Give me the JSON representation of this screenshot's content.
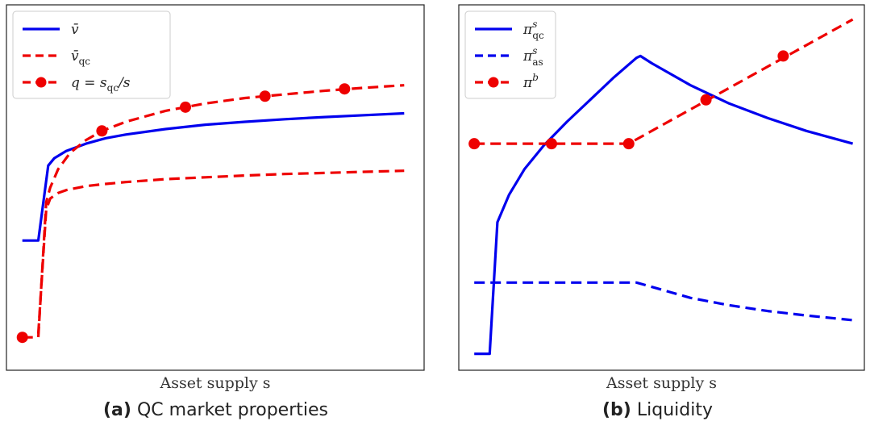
{
  "chart_data": [
    {
      "type": "line",
      "caption_tag": "(a)",
      "caption_text": "QC market properties",
      "xlabel": "Asset supply s",
      "ylabel": "",
      "xlim": [
        0,
        10.5
      ],
      "ylim": [
        0,
        10
      ],
      "grid": false,
      "ticks": false,
      "legend": "top-left",
      "series": [
        {
          "name": "v̄",
          "color": "#0000ee",
          "style": "solid",
          "markers": false,
          "x": [
            0.4,
            0.8,
            1.05,
            1.2,
            1.5,
            2,
            2.5,
            3,
            4,
            5,
            6,
            7,
            8,
            9,
            10
          ],
          "y": [
            3.55,
            3.55,
            5.6,
            5.8,
            6.0,
            6.2,
            6.35,
            6.45,
            6.6,
            6.72,
            6.8,
            6.87,
            6.93,
            6.98,
            7.03
          ]
        },
        {
          "name": "v̄qc",
          "color": "#ee0000",
          "style": "dashed",
          "markers": false,
          "x": [
            0.8,
            1.0,
            1.1,
            1.3,
            1.5,
            2,
            2.5,
            3,
            4,
            5,
            6,
            7,
            8,
            9,
            10
          ],
          "y": [
            1.0,
            4.4,
            4.7,
            4.85,
            4.93,
            5.04,
            5.1,
            5.15,
            5.23,
            5.28,
            5.33,
            5.37,
            5.4,
            5.43,
            5.46
          ]
        },
        {
          "name": "q = sqc/s",
          "color": "#ee0000",
          "style": "dashed",
          "markers": true,
          "x": [
            0.4,
            0.8,
            1.0,
            1.1,
            1.3,
            1.6,
            2,
            2.4,
            3,
            4,
            5,
            6,
            7,
            8,
            9,
            10
          ],
          "y": [
            0.9,
            0.9,
            4.6,
            5.0,
            5.5,
            5.95,
            6.3,
            6.55,
            6.8,
            7.1,
            7.3,
            7.45,
            7.55,
            7.65,
            7.73,
            7.8
          ],
          "marker_x": [
            0.4,
            2.4,
            4.5,
            6.5,
            8.5
          ],
          "marker_y": [
            0.9,
            6.55,
            7.2,
            7.5,
            7.7
          ]
        }
      ],
      "legend_entries": [
        {
          "pre": "v̄",
          "sub": ""
        },
        {
          "pre": "v̄",
          "sub": "qc"
        },
        {
          "pre": "q = s",
          "sub": "qc",
          "post": "/s"
        }
      ]
    },
    {
      "type": "line",
      "caption_tag": "(b)",
      "caption_text": "Liquidity",
      "xlabel": "Asset supply s",
      "ylabel": "",
      "xlim": [
        0,
        10.5
      ],
      "ylim": [
        0,
        10
      ],
      "grid": false,
      "ticks": false,
      "legend": "top-left",
      "series": [
        {
          "name": "πsqc",
          "color": "#0000ee",
          "style": "solid",
          "markers": false,
          "x": [
            0.4,
            0.8,
            1.0,
            1.3,
            1.7,
            2.2,
            2.8,
            3.4,
            4.0,
            4.6,
            4.7,
            5.0,
            5.5,
            6,
            7,
            8,
            9,
            10.2
          ],
          "y": [
            0.45,
            0.45,
            4.05,
            4.8,
            5.5,
            6.15,
            6.8,
            7.4,
            8.0,
            8.55,
            8.6,
            8.4,
            8.1,
            7.8,
            7.3,
            6.9,
            6.55,
            6.2
          ]
        },
        {
          "name": "πsas",
          "color": "#0000ee",
          "style": "dashed",
          "markers": false,
          "x": [
            0.4,
            1,
            2,
            3,
            4,
            4.6,
            5.0,
            6,
            7,
            8,
            9,
            10.2
          ],
          "y": [
            2.4,
            2.4,
            2.4,
            2.4,
            2.4,
            2.4,
            2.28,
            1.98,
            1.78,
            1.62,
            1.5,
            1.37
          ]
        },
        {
          "name": "πb",
          "color": "#ee0000",
          "style": "dashed",
          "markers": true,
          "x": [
            0.4,
            2.4,
            4.4,
            10.2
          ],
          "y": [
            6.2,
            6.2,
            6.2,
            9.6
          ],
          "marker_x": [
            0.4,
            2.4,
            4.4,
            6.4,
            8.4
          ],
          "marker_y": [
            6.2,
            6.2,
            6.2,
            7.4,
            8.6
          ]
        }
      ],
      "legend_entries": [
        {
          "pre": "π",
          "sup": "s",
          "sub": "qc"
        },
        {
          "pre": "π",
          "sup": "s",
          "sub": "as"
        },
        {
          "pre": "π",
          "sup": "b",
          "sub": ""
        }
      ]
    }
  ]
}
